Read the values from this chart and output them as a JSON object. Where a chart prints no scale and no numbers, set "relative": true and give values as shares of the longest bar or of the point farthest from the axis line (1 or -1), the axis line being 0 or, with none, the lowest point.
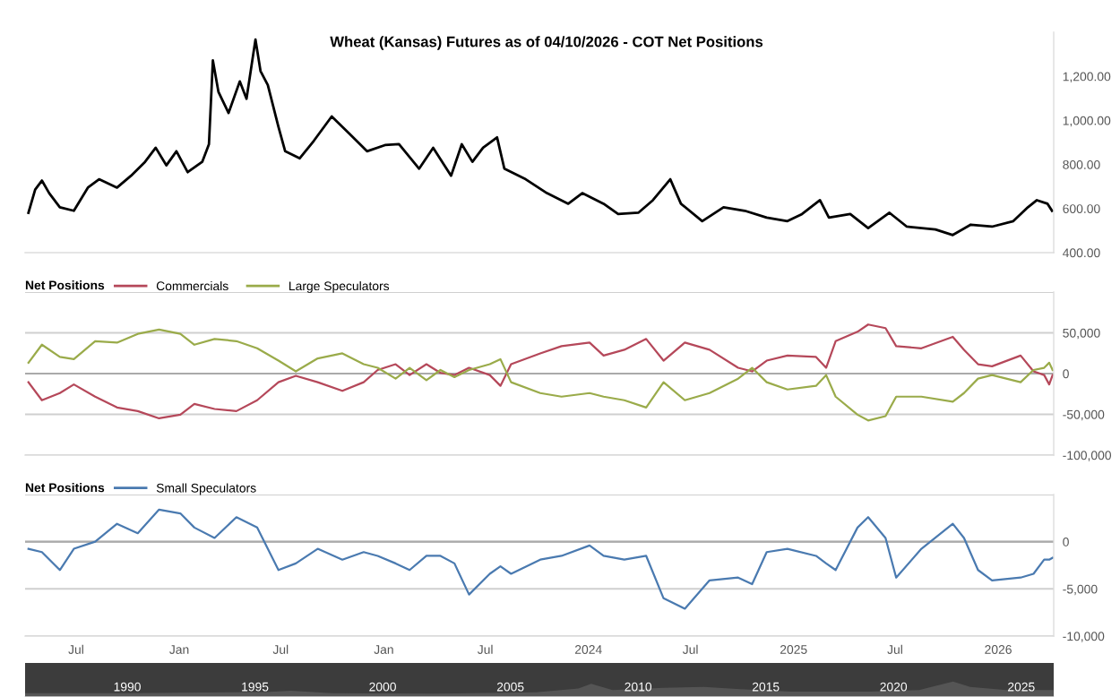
{
  "chart_data": [
    {
      "type": "line",
      "title": "Wheat (Kansas) Futures as of 04/10/2026 - COT Net Positions",
      "xlim": [
        "2021-04-01",
        "2026-04-10"
      ],
      "ylim": [
        400,
        1400
      ],
      "yticks": [
        {
          "value": 400,
          "label": "400.00"
        },
        {
          "value": 600,
          "label": "600.00"
        },
        {
          "value": 800,
          "label": "800.00"
        },
        {
          "value": 1000,
          "label": "1,000.00"
        },
        {
          "value": 1200,
          "label": "1,200.00"
        }
      ],
      "tick_labels": "y",
      "grid": false,
      "legend": false,
      "x": [
        "2021-04-07",
        "2021-04-19",
        "2021-05-01",
        "2021-05-14",
        "2021-06-02",
        "2021-06-27",
        "2021-07-22",
        "2021-08-11",
        "2021-09-12",
        "2021-10-07",
        "2021-11-01",
        "2021-11-20",
        "2021-12-09",
        "2021-12-27",
        "2022-01-16",
        "2022-02-11",
        "2022-02-23",
        "2022-03-02",
        "2022-03-12",
        "2022-03-30",
        "2022-04-19",
        "2022-05-01",
        "2022-05-17",
        "2022-05-26",
        "2022-06-08",
        "2022-06-27",
        "2022-07-09",
        "2022-08-04",
        "2022-08-29",
        "2022-09-30",
        "2022-11-01",
        "2022-12-02",
        "2023-01-03",
        "2023-01-28",
        "2023-03-05",
        "2023-03-30",
        "2023-05-01",
        "2023-05-20",
        "2023-06-08",
        "2023-06-27",
        "2023-07-22",
        "2023-08-04",
        "2023-09-11",
        "2023-10-19",
        "2023-11-26",
        "2023-12-21",
        "2024-01-28",
        "2024-02-23",
        "2024-03-30",
        "2024-04-25",
        "2024-05-26",
        "2024-06-14",
        "2024-07-22",
        "2024-08-29",
        "2024-10-06",
        "2024-11-14",
        "2024-12-21",
        "2025-01-16",
        "2025-02-17",
        "2025-03-05",
        "2025-04-12",
        "2025-05-14",
        "2025-06-21",
        "2025-07-22",
        "2025-09-11",
        "2025-10-12",
        "2025-11-13",
        "2025-12-21",
        "2026-01-28",
        "2026-02-23",
        "2026-03-11",
        "2026-03-30",
        "2026-04-07"
      ],
      "series": [
        {
          "color": "#000000",
          "values": [
            581,
            686,
            727,
            670,
            606,
            590,
            695,
            733,
            695,
            749,
            812,
            876,
            796,
            860,
            765,
            812,
            892,
            1272,
            1129,
            1034,
            1177,
            1098,
            1367,
            1224,
            1161,
            971,
            860,
            828,
            907,
            1018,
            939,
            860,
            888,
            892,
            781,
            876,
            749,
            892,
            812,
            876,
            923,
            781,
            733,
            670,
            622,
            670,
            622,
            575,
            581,
            638,
            733,
            622,
            543,
            606,
            590,
            559,
            543,
            575,
            638,
            559,
            575,
            511,
            581,
            518,
            505,
            480,
            527,
            518,
            543,
            606,
            638,
            622,
            590
          ]
        }
      ]
    },
    {
      "type": "line",
      "legend_title": "Net Positions",
      "legend": "top left",
      "xlim": [
        "2021-04-01",
        "2026-04-10"
      ],
      "ylim": [
        -100000,
        100000
      ],
      "yticks": [
        {
          "value": -100000,
          "label": "-100,000"
        },
        {
          "value": -50000,
          "label": "-50,000"
        },
        0,
        {
          "value": 50000,
          "label": "50,000"
        },
        {
          "value": 100000,
          "label": null
        }
      ],
      "tick_labels": "y",
      "grid": "y",
      "ref_lines": [
        {
          "axis": "y",
          "value": 0,
          "color": "#aaaaaa"
        }
      ],
      "x": [
        "2021-04-07",
        "2021-05-01",
        "2021-06-02",
        "2021-06-27",
        "2021-08-04",
        "2021-09-12",
        "2021-10-19",
        "2021-11-26",
        "2022-01-03",
        "2022-01-28",
        "2022-03-05",
        "2022-04-13",
        "2022-05-20",
        "2022-06-27",
        "2022-07-28",
        "2022-09-05",
        "2022-10-19",
        "2022-11-26",
        "2022-12-21",
        "2023-01-22",
        "2023-02-16",
        "2023-03-18",
        "2023-04-12",
        "2023-05-07",
        "2023-06-02",
        "2023-07-09",
        "2023-07-28",
        "2023-08-16",
        "2023-10-07",
        "2023-11-14",
        "2024-01-03",
        "2024-01-28",
        "2024-03-05",
        "2024-04-13",
        "2024-05-14",
        "2024-06-21",
        "2024-08-04",
        "2024-09-24",
        "2024-10-19",
        "2024-11-14",
        "2024-12-21",
        "2025-02-10",
        "2025-02-28",
        "2025-03-17",
        "2025-04-25",
        "2025-05-14",
        "2025-06-14",
        "2025-07-03",
        "2025-08-17",
        "2025-10-12",
        "2025-11-01",
        "2025-11-26",
        "2025-12-21",
        "2026-02-10",
        "2026-03-05",
        "2026-03-24",
        "2026-04-02",
        "2026-04-08"
      ],
      "series": [
        {
          "name": "Commercials",
          "color": "#b5485a",
          "values": [
            -10600,
            -32700,
            -23900,
            -13300,
            -28300,
            -41600,
            -46000,
            -54900,
            -50400,
            -37200,
            -43400,
            -46000,
            -32700,
            -10600,
            -2700,
            -10600,
            -21200,
            -10600,
            4400,
            11500,
            -1800,
            11500,
            900,
            -1800,
            7100,
            -1800,
            -15000,
            11500,
            24800,
            33600,
            38000,
            22100,
            29200,
            42500,
            15900,
            38000,
            29200,
            7100,
            2700,
            15900,
            22100,
            20400,
            7100,
            39800,
            51300,
            60200,
            55800,
            33600,
            31000,
            45100,
            29200,
            11500,
            8900,
            22100,
            2700,
            -1800,
            -13300,
            -1800
          ]
        },
        {
          "name": "Large Speculators",
          "color": "#9aab4a",
          "values": [
            13300,
            35400,
            20400,
            17700,
            39800,
            38000,
            48700,
            54000,
            48700,
            35400,
            42500,
            39800,
            31000,
            15900,
            2700,
            18600,
            24800,
            11500,
            7100,
            -6200,
            7100,
            -8000,
            4400,
            -4400,
            4400,
            11500,
            17700,
            -10600,
            -23900,
            -28300,
            -23900,
            -28300,
            -32700,
            -41600,
            -10600,
            -32700,
            -23900,
            -6200,
            7100,
            -10600,
            -19500,
            -15000,
            -1800,
            -28300,
            -50400,
            -57500,
            -52200,
            -28300,
            -28300,
            -34500,
            -23900,
            -6200,
            -1800,
            -10600,
            4400,
            7100,
            13300,
            4400
          ]
        }
      ]
    },
    {
      "type": "line",
      "legend_title": "Net Positions",
      "legend": "top left",
      "xlim": [
        "2021-04-01",
        "2026-04-10"
      ],
      "ylim": [
        -10000,
        5000
      ],
      "yticks": [
        {
          "value": -10000,
          "label": "-10,000"
        },
        {
          "value": -5000,
          "label": "-5,000"
        },
        0,
        {
          "value": 5000,
          "label": null
        }
      ],
      "xticks": [
        {
          "value": "2021-07-01",
          "label": "Jul"
        },
        {
          "value": "2022-01-01",
          "label": "Jan"
        },
        {
          "value": "2022-07-01",
          "label": "Jul"
        },
        {
          "value": "2023-01-01",
          "label": "Jan"
        },
        {
          "value": "2023-07-01",
          "label": "Jul"
        },
        {
          "value": "2024-01-01",
          "label": "2024"
        },
        {
          "value": "2024-07-01",
          "label": "Jul"
        },
        {
          "value": "2025-01-01",
          "label": "2025"
        },
        {
          "value": "2025-07-01",
          "label": "Jul"
        },
        {
          "value": "2026-01-01",
          "label": "2026"
        }
      ],
      "grid": "y",
      "ref_lines": [
        {
          "axis": "y",
          "value": 0,
          "color": "#aaaaaa"
        }
      ],
      "x": [
        "2021-04-07",
        "2021-05-01",
        "2021-06-02",
        "2021-06-27",
        "2021-08-04",
        "2021-09-12",
        "2021-10-19",
        "2021-11-26",
        "2022-01-03",
        "2022-01-28",
        "2022-03-05",
        "2022-04-13",
        "2022-05-20",
        "2022-06-27",
        "2022-07-28",
        "2022-09-05",
        "2022-10-19",
        "2022-11-26",
        "2022-12-21",
        "2023-01-22",
        "2023-02-16",
        "2023-03-18",
        "2023-04-12",
        "2023-05-07",
        "2023-06-02",
        "2023-07-09",
        "2023-07-28",
        "2023-08-16",
        "2023-10-07",
        "2023-11-14",
        "2024-01-03",
        "2024-01-28",
        "2024-03-05",
        "2024-04-13",
        "2024-05-14",
        "2024-06-21",
        "2024-08-04",
        "2024-09-24",
        "2024-10-19",
        "2024-11-14",
        "2024-12-21",
        "2025-02-10",
        "2025-02-28",
        "2025-03-17",
        "2025-04-25",
        "2025-05-14",
        "2025-06-14",
        "2025-07-03",
        "2025-08-17",
        "2025-10-12",
        "2025-11-01",
        "2025-11-26",
        "2025-12-21",
        "2026-02-10",
        "2026-03-05",
        "2026-03-24",
        "2026-04-02",
        "2026-04-08"
      ],
      "series": [
        {
          "name": "Small Speculators",
          "color": "#4a7ab0",
          "values": [
            -750,
            -1100,
            -3000,
            -750,
            0,
            1900,
            900,
            3400,
            3000,
            1500,
            400,
            2600,
            1500,
            -3000,
            -2300,
            -750,
            -1900,
            -1100,
            -1500,
            -2300,
            -3000,
            -1500,
            -1500,
            -2300,
            -5600,
            -3400,
            -2600,
            -3400,
            -1900,
            -1500,
            -400,
            -1500,
            -1900,
            -1500,
            -6000,
            -7100,
            -4100,
            -3800,
            -4500,
            -1100,
            -750,
            -1500,
            -2300,
            -3000,
            1500,
            2600,
            400,
            -3800,
            -750,
            1900,
            400,
            -3000,
            -4100,
            -3800,
            -3400,
            -1900,
            -1900,
            -1700
          ]
        }
      ]
    },
    {
      "type": "area",
      "relative": true,
      "xlim": [
        "1986-01-01",
        "2026-04-10"
      ],
      "xticks": [
        {
          "value": "1990-01-01",
          "label": "1990"
        },
        {
          "value": "1995-01-01",
          "label": "1995"
        },
        {
          "value": "2000-01-01",
          "label": "2000"
        },
        {
          "value": "2005-01-01",
          "label": "2005"
        },
        {
          "value": "2010-01-01",
          "label": "2010"
        },
        {
          "value": "2015-01-01",
          "label": "2015"
        },
        {
          "value": "2020-01-01",
          "label": "2020"
        },
        {
          "value": "2025-01-01",
          "label": "2025"
        }
      ],
      "tick_labels": "x",
      "x": [
        "1986-01-01",
        "1990-01-01",
        "1995-06-01",
        "1996-06-01",
        "1998-01-01",
        "2002-01-01",
        "2006-01-01",
        "2007-09-01",
        "2008-03-01",
        "2009-01-01",
        "2011-01-01",
        "2012-08-01",
        "2014-01-01",
        "2016-01-01",
        "2019-01-01",
        "2021-01-01",
        "2022-05-01",
        "2023-01-01",
        "2024-06-01",
        "2026-04-08"
      ],
      "series": [
        {
          "color": "#555555",
          "values": [
            0.25,
            0.25,
            0.32,
            0.4,
            0.25,
            0.22,
            0.3,
            0.55,
            0.85,
            0.45,
            0.6,
            0.65,
            0.5,
            0.35,
            0.35,
            0.45,
            1,
            0.65,
            0.45,
            0.45
          ]
        }
      ]
    }
  ]
}
